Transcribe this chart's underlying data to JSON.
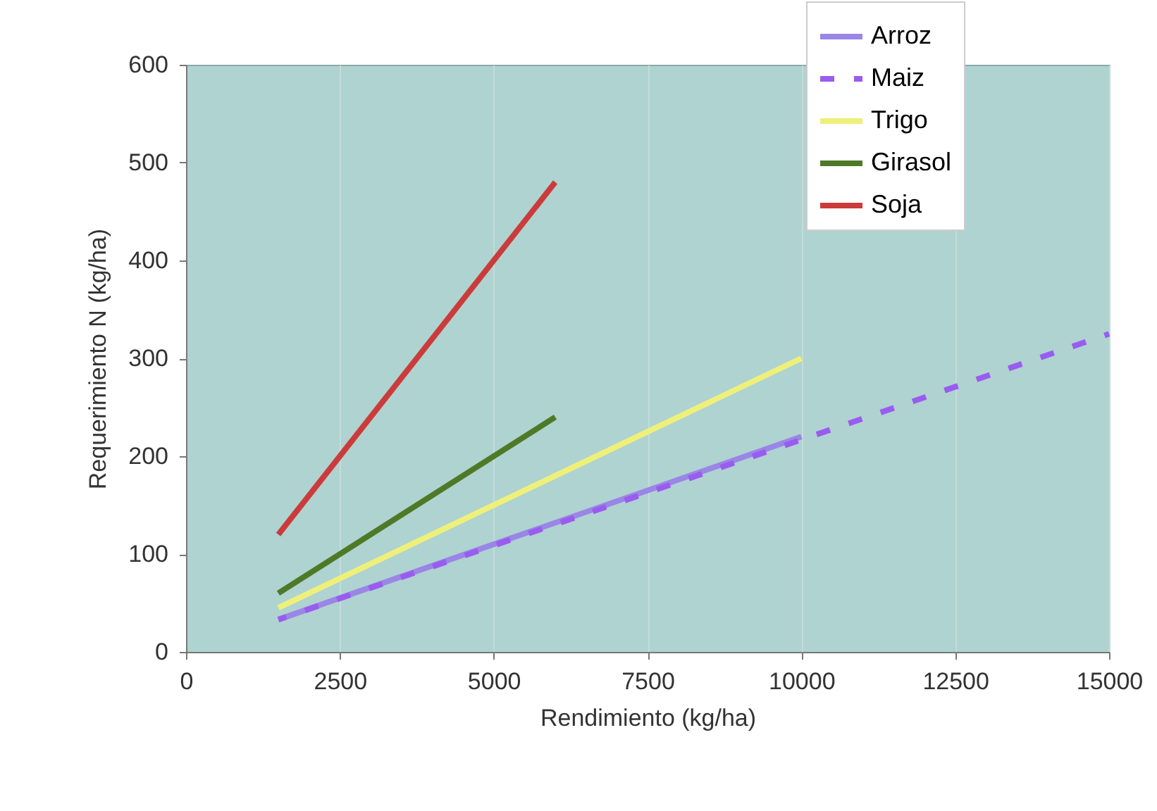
{
  "chart_data": {
    "type": "line",
    "xlabel": "Rendimiento (kg/ha)",
    "ylabel": "Requerimiento N (kg/ha)",
    "xlim": [
      0,
      15000
    ],
    "xticks": [
      0,
      2500,
      5000,
      7500,
      10000,
      12500,
      15000
    ],
    "ylim": [
      0,
      600
    ],
    "yticks": [
      0,
      100,
      200,
      300,
      400,
      500,
      600
    ],
    "grid": "x",
    "legend": "top right",
    "series": [
      {
        "name": "Arroz",
        "color": "#9a86e6",
        "line_style": "solid",
        "x": [
          1500,
          10000
        ],
        "values": [
          33,
          220
        ]
      },
      {
        "name": "Maiz",
        "color": "#9a5cf0",
        "line_style": "dashed",
        "x": [
          1500,
          15000
        ],
        "values": [
          33,
          325
        ]
      },
      {
        "name": "Trigo",
        "color": "#eef07a",
        "line_style": "solid",
        "x": [
          1500,
          10000
        ],
        "values": [
          45,
          300
        ]
      },
      {
        "name": "Girasol",
        "color": "#4e7a28",
        "line_style": "solid",
        "x": [
          1500,
          6000
        ],
        "values": [
          60,
          240
        ]
      },
      {
        "name": "Soja",
        "color": "#cc3b3b",
        "line_style": "solid",
        "x": [
          1500,
          6000
        ],
        "values": [
          120,
          480
        ]
      }
    ]
  }
}
